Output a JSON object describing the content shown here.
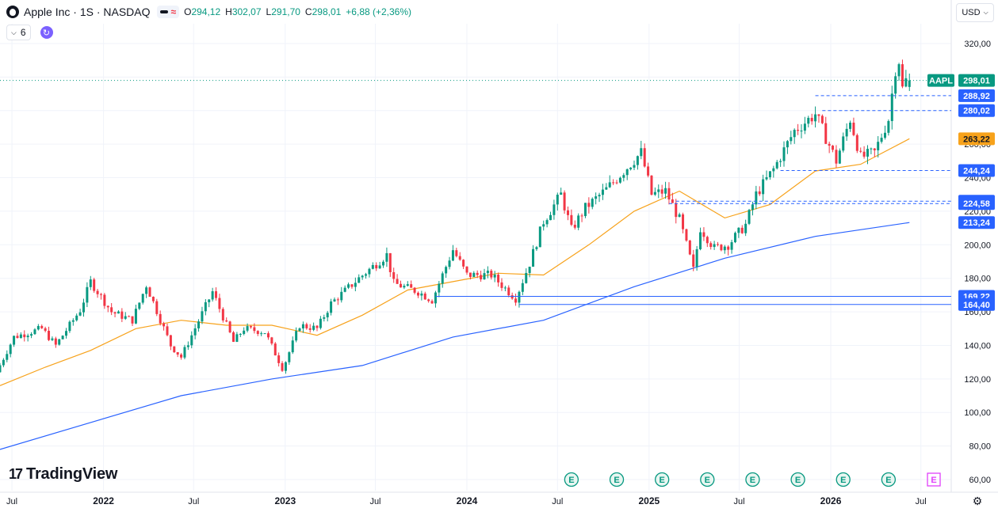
{
  "header": {
    "symbol_title": "Apple Inc · 1S · NASDAQ",
    "ohlc_o_label": "O",
    "ohlc_o": "294,12",
    "ohlc_h_label": "H",
    "ohlc_h": "302,07",
    "ohlc_l_label": "L",
    "ohlc_l": "291,70",
    "ohlc_c_label": "C",
    "ohlc_c": "298,01",
    "change": "+6,88 (+2,36%)",
    "interval_count": "6",
    "currency": "USD"
  },
  "brand": {
    "name": "TradingView"
  },
  "colors": {
    "up": "#089981",
    "down": "#f23645",
    "ma_short": "#f7a21b",
    "ma_long": "#2962ff",
    "level_line": "#2962ff",
    "tag_bg": "#2962ff",
    "grid": "#f0f3fa",
    "earnings_up": "#089981",
    "earnings_future": "#e040fb"
  },
  "chart_data": {
    "type": "candlestick",
    "symbol": "AAPL",
    "interval": "1S",
    "ylim": [
      60,
      320
    ],
    "y_ticks": [
      60,
      80,
      100,
      120,
      140,
      160,
      180,
      200,
      220,
      240,
      260,
      280,
      300,
      320
    ],
    "y_tick_labels": [
      "60,00",
      "80,00",
      "100,00",
      "120,00",
      "140,00",
      "160,00",
      "180,00",
      "200,00",
      "220,00",
      "240,00",
      "260,00",
      "280,00",
      "300,00",
      "320,00"
    ],
    "x_range": [
      "2021-06-07",
      "2026-08-31"
    ],
    "x_ticks": [
      {
        "date": "2021-07-01",
        "label": "Jul",
        "bold": false
      },
      {
        "date": "2022-01-01",
        "label": "2022",
        "bold": true
      },
      {
        "date": "2022-07-01",
        "label": "Jul",
        "bold": false
      },
      {
        "date": "2023-01-01",
        "label": "2023",
        "bold": true
      },
      {
        "date": "2023-07-01",
        "label": "Jul",
        "bold": false
      },
      {
        "date": "2024-01-01",
        "label": "2024",
        "bold": true
      },
      {
        "date": "2024-07-01",
        "label": "Jul",
        "bold": false
      },
      {
        "date": "2025-01-01",
        "label": "2025",
        "bold": true
      },
      {
        "date": "2025-07-01",
        "label": "Jul",
        "bold": false
      },
      {
        "date": "2026-01-01",
        "label": "2026",
        "bold": true
      },
      {
        "date": "2026-07-01",
        "label": "Jul",
        "bold": false
      }
    ],
    "last_price": 298.01,
    "last_price_label": "298,01",
    "last_symbol_tag": "AAPL",
    "price_path": [
      [
        "2021-06-07",
        124
      ],
      [
        "2021-07-12",
        145
      ],
      [
        "2021-09-06",
        150
      ],
      [
        "2021-10-04",
        140
      ],
      [
        "2021-11-22",
        161
      ],
      [
        "2021-12-13",
        178
      ],
      [
        "2022-01-24",
        160
      ],
      [
        "2022-03-07",
        155
      ],
      [
        "2022-04-04",
        176
      ],
      [
        "2022-05-23",
        140
      ],
      [
        "2022-06-13",
        133
      ],
      [
        "2022-08-15",
        172
      ],
      [
        "2022-09-26",
        142
      ],
      [
        "2022-10-17",
        150
      ],
      [
        "2022-11-28",
        148
      ],
      [
        "2023-01-03",
        126
      ],
      [
        "2023-02-06",
        152
      ],
      [
        "2023-03-13",
        150
      ],
      [
        "2023-04-10",
        165
      ],
      [
        "2023-06-05",
        180
      ],
      [
        "2023-07-31",
        194
      ],
      [
        "2023-08-14",
        177
      ],
      [
        "2023-10-02",
        172
      ],
      [
        "2023-10-30",
        167
      ],
      [
        "2023-12-11",
        197
      ],
      [
        "2024-01-08",
        182
      ],
      [
        "2024-02-26",
        182
      ],
      [
        "2024-04-15",
        168
      ],
      [
        "2024-05-13",
        189
      ],
      [
        "2024-06-10",
        214
      ],
      [
        "2024-07-15",
        230
      ],
      [
        "2024-08-05",
        209
      ],
      [
        "2024-09-02",
        222
      ],
      [
        "2024-10-14",
        233
      ],
      [
        "2024-12-23",
        255
      ],
      [
        "2025-01-13",
        230
      ],
      [
        "2025-02-10",
        232
      ],
      [
        "2025-03-10",
        215
      ],
      [
        "2025-04-07",
        185
      ],
      [
        "2025-04-21",
        210
      ],
      [
        "2025-05-19",
        198
      ],
      [
        "2025-06-16",
        200
      ],
      [
        "2025-07-21",
        212
      ],
      [
        "2025-08-11",
        230
      ],
      [
        "2025-09-15",
        245
      ],
      [
        "2025-10-27",
        268
      ],
      [
        "2025-12-08",
        278
      ],
      [
        "2026-01-19",
        250
      ],
      [
        "2026-02-16",
        275
      ],
      [
        "2026-03-09",
        252
      ],
      [
        "2026-04-06",
        255
      ],
      [
        "2026-05-04",
        275
      ],
      [
        "2026-05-18",
        305
      ],
      [
        "2026-05-25",
        310
      ],
      [
        "2026-06-01",
        293
      ],
      [
        "2026-06-08",
        298
      ]
    ],
    "last_candle": {
      "date": "2026-06-08",
      "open": 294.12,
      "high": 302.07,
      "low": 291.7,
      "close": 298.01
    },
    "ma_short": {
      "color": "#f7a21b",
      "points": [
        [
          "2021-06-07",
          116
        ],
        [
          "2021-09-06",
          127
        ],
        [
          "2021-12-06",
          137
        ],
        [
          "2022-03-07",
          150
        ],
        [
          "2022-06-06",
          155
        ],
        [
          "2022-09-05",
          152
        ],
        [
          "2022-12-05",
          152
        ],
        [
          "2023-03-06",
          146
        ],
        [
          "2023-06-05",
          158
        ],
        [
          "2023-09-04",
          173
        ],
        [
          "2023-12-04",
          178
        ],
        [
          "2024-03-04",
          183
        ],
        [
          "2024-06-03",
          182
        ],
        [
          "2024-09-02",
          200
        ],
        [
          "2024-12-02",
          220
        ],
        [
          "2025-03-03",
          232
        ],
        [
          "2025-06-02",
          216
        ],
        [
          "2025-09-01",
          224
        ],
        [
          "2025-12-01",
          244
        ],
        [
          "2026-03-02",
          248
        ],
        [
          "2026-06-08",
          263.22
        ]
      ]
    },
    "ma_long": {
      "color": "#2962ff",
      "points": [
        [
          "2021-06-07",
          78
        ],
        [
          "2021-12-06",
          94
        ],
        [
          "2022-06-06",
          110
        ],
        [
          "2022-12-06",
          120
        ],
        [
          "2023-06-05",
          128
        ],
        [
          "2023-12-04",
          145
        ],
        [
          "2024-06-03",
          155
        ],
        [
          "2024-12-02",
          175
        ],
        [
          "2025-06-02",
          192
        ],
        [
          "2025-12-01",
          205
        ],
        [
          "2026-06-08",
          213.24
        ]
      ]
    },
    "levels": [
      {
        "value": 288.92,
        "label": "288,92",
        "from": "2025-12-01",
        "style": "dashed"
      },
      {
        "value": 280.02,
        "label": "280,02",
        "from": "2025-12-15",
        "style": "dashed"
      },
      {
        "value": 263.22,
        "label": "263,22",
        "kind": "ma_short_tag"
      },
      {
        "value": 244.24,
        "label": "244,24",
        "from": "2025-09-22",
        "style": "dashed"
      },
      {
        "value": 225.99,
        "label": "225,99",
        "from": "2025-02-24",
        "style": "dashed"
      },
      {
        "value": 224.58,
        "label": "224,58",
        "from": "2025-02-10",
        "style": "dashed"
      },
      {
        "value": 213.24,
        "label": "213,24",
        "kind": "ma_long_tag"
      },
      {
        "value": 169.22,
        "label": "169,22",
        "from": "2023-10-30",
        "style": "solid"
      },
      {
        "value": 164.4,
        "label": "164,40",
        "from": "2024-04-15",
        "style": "solid"
      }
    ],
    "earnings": [
      {
        "date": "2024-07-29",
        "label": "E",
        "future": false
      },
      {
        "date": "2024-10-28",
        "label": "E",
        "future": false
      },
      {
        "date": "2025-01-27",
        "label": "E",
        "future": false
      },
      {
        "date": "2025-04-28",
        "label": "E",
        "future": false
      },
      {
        "date": "2025-07-28",
        "label": "E",
        "future": false
      },
      {
        "date": "2025-10-27",
        "label": "E",
        "future": false
      },
      {
        "date": "2026-01-26",
        "label": "E",
        "future": false
      },
      {
        "date": "2026-04-27",
        "label": "E",
        "future": false
      },
      {
        "date": "2026-07-27",
        "label": "E",
        "future": true
      }
    ]
  }
}
